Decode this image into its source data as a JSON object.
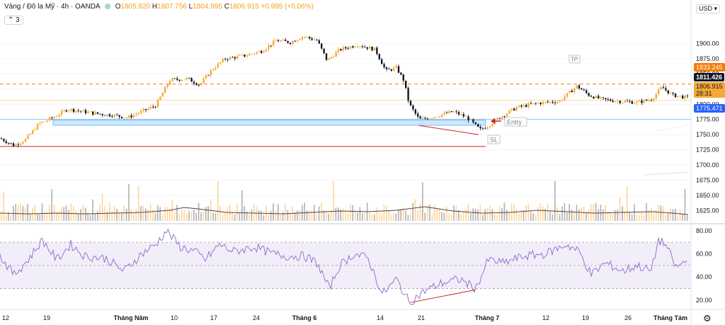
{
  "header": {
    "symbol": "Vàng / Đô la Mỹ · 4h · OANDA",
    "open_label": "O",
    "open": "1805.920",
    "high_label": "H",
    "high": "1807.756",
    "low_label": "L",
    "low": "1804.995",
    "close_label": "C",
    "close": "1806.915",
    "change": "+0.995 (+0.06%)"
  },
  "collapse_count": "3",
  "currency": "USD",
  "price_labels": {
    "tp_line": "1833.245",
    "last": "1811.426",
    "current": "1806.915",
    "countdown": "28:31",
    "blue_line": "1775.471"
  },
  "annotations": {
    "tp": "TP",
    "entry": "Entry",
    "sl": "SL"
  },
  "colors": {
    "up": "#f7a935",
    "down": "#131722",
    "accent": "#2962ff",
    "tp_line": "#f57c00",
    "sl_line": "#c62828",
    "zone": "#bbdefb",
    "rsi": "#7e57c2",
    "rsi_band": "#ede7f6"
  },
  "chart_data": {
    "type": "candlestick",
    "price_axis": {
      "ticks": [
        1900,
        1875,
        1850,
        1825,
        1800,
        1775,
        1750,
        1725,
        1700,
        1675,
        1650,
        1625
      ],
      "range": [
        1608,
        1960
      ]
    },
    "rsi_axis": {
      "ticks": [
        "80.00",
        "60.00",
        "40.00",
        "20.00"
      ],
      "levels": [
        70,
        50,
        30
      ],
      "range": [
        12,
        86
      ]
    },
    "x_tick_labels": [
      "12",
      "19",
      "Tháng Năm",
      "10",
      "17",
      "24",
      "Tháng 6",
      "14",
      "21",
      "Tháng 7",
      "12",
      "19",
      "26",
      "Tháng Tám"
    ],
    "close_path": [
      [
        0,
        1744
      ],
      [
        20,
        1732
      ],
      [
        36,
        1742
      ],
      [
        55,
        1768
      ],
      [
        75,
        1778
      ],
      [
        95,
        1792
      ],
      [
        118,
        1788
      ],
      [
        140,
        1784
      ],
      [
        160,
        1782
      ],
      [
        180,
        1778
      ],
      [
        200,
        1788
      ],
      [
        220,
        1798
      ],
      [
        240,
        1840
      ],
      [
        265,
        1842
      ],
      [
        282,
        1832
      ],
      [
        300,
        1858
      ],
      [
        318,
        1875
      ],
      [
        345,
        1880
      ],
      [
        370,
        1888
      ],
      [
        390,
        1905
      ],
      [
        410,
        1902
      ],
      [
        428,
        1912
      ],
      [
        448,
        1905
      ],
      [
        462,
        1872
      ],
      [
        480,
        1890
      ],
      [
        505,
        1898
      ],
      [
        530,
        1890
      ],
      [
        545,
        1855
      ],
      [
        560,
        1860
      ],
      [
        570,
        1840
      ],
      [
        578,
        1800
      ],
      [
        592,
        1775
      ],
      [
        615,
        1780
      ],
      [
        640,
        1788
      ],
      [
        660,
        1778
      ],
      [
        678,
        1758
      ],
      [
        690,
        1765
      ],
      [
        705,
        1778
      ],
      [
        730,
        1795
      ],
      [
        760,
        1802
      ],
      [
        790,
        1805
      ],
      [
        815,
        1830
      ],
      [
        832,
        1815
      ],
      [
        850,
        1808
      ],
      [
        875,
        1805
      ],
      [
        900,
        1803
      ],
      [
        920,
        1808
      ],
      [
        935,
        1828
      ],
      [
        950,
        1815
      ],
      [
        970,
        1811
      ]
    ],
    "zone": {
      "from_price": 1774.2,
      "to_price": 1765.3
    },
    "tp_price": 1833.245,
    "blue_line_price": 1775.471,
    "sl_price": 1730.5,
    "rsi_path": [
      [
        0,
        58
      ],
      [
        20,
        42
      ],
      [
        40,
        55
      ],
      [
        60,
        72
      ],
      [
        80,
        55
      ],
      [
        100,
        68
      ],
      [
        120,
        58
      ],
      [
        150,
        56
      ],
      [
        175,
        45
      ],
      [
        200,
        60
      ],
      [
        220,
        68
      ],
      [
        235,
        80
      ],
      [
        255,
        66
      ],
      [
        275,
        62
      ],
      [
        290,
        55
      ],
      [
        310,
        68
      ],
      [
        330,
        62
      ],
      [
        360,
        66
      ],
      [
        385,
        60
      ],
      [
        405,
        58
      ],
      [
        430,
        58
      ],
      [
        448,
        52
      ],
      [
        465,
        30
      ],
      [
        480,
        50
      ],
      [
        500,
        60
      ],
      [
        520,
        56
      ],
      [
        540,
        25
      ],
      [
        560,
        38
      ],
      [
        578,
        18
      ],
      [
        600,
        28
      ],
      [
        625,
        35
      ],
      [
        650,
        38
      ],
      [
        672,
        30
      ],
      [
        690,
        55
      ],
      [
        710,
        52
      ],
      [
        740,
        58
      ],
      [
        770,
        60
      ],
      [
        800,
        68
      ],
      [
        818,
        62
      ],
      [
        835,
        42
      ],
      [
        855,
        52
      ],
      [
        880,
        45
      ],
      [
        900,
        50
      ],
      [
        920,
        45
      ],
      [
        930,
        72
      ],
      [
        940,
        68
      ],
      [
        955,
        48
      ],
      [
        972,
        55
      ]
    ],
    "volume_ma_path": [
      [
        0,
        301
      ],
      [
        40,
        302
      ],
      [
        80,
        301
      ],
      [
        120,
        302
      ],
      [
        160,
        301
      ],
      [
        200,
        300
      ],
      [
        240,
        297
      ],
      [
        260,
        293
      ],
      [
        280,
        295
      ],
      [
        320,
        300
      ],
      [
        360,
        301
      ],
      [
        400,
        302
      ],
      [
        440,
        300
      ],
      [
        480,
        298
      ],
      [
        520,
        299
      ],
      [
        560,
        297
      ],
      [
        600,
        292
      ],
      [
        640,
        298
      ],
      [
        680,
        301
      ],
      [
        720,
        300
      ],
      [
        760,
        297
      ],
      [
        800,
        299
      ],
      [
        840,
        301
      ],
      [
        880,
        300
      ],
      [
        920,
        299
      ],
      [
        950,
        301
      ],
      [
        972,
        303
      ]
    ]
  }
}
